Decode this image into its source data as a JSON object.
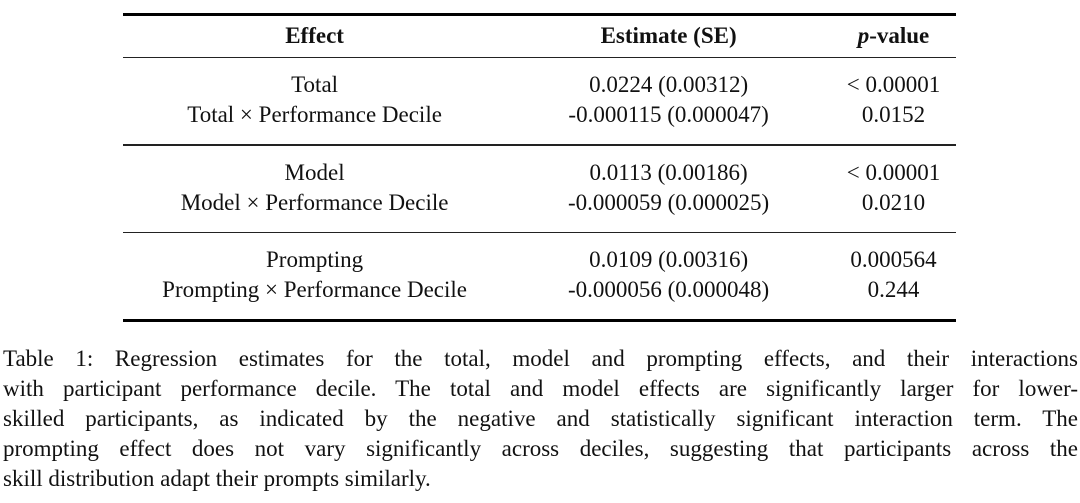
{
  "figure": {
    "table": {
      "header": {
        "effect": "Effect",
        "estimate": "Estimate (SE)",
        "p_italic": "p",
        "p_rest": "-value"
      },
      "groups": [
        {
          "rows": [
            {
              "effect": "Total",
              "estimate": "0.0224 (0.00312)",
              "p": "< 0.00001"
            },
            {
              "effect": "Total × Performance Decile",
              "estimate": "-0.000115 (0.000047)",
              "p": "0.0152"
            }
          ]
        },
        {
          "rows": [
            {
              "effect": "Model",
              "estimate": "0.0113 (0.00186)",
              "p": "< 0.00001"
            },
            {
              "effect": "Model × Performance Decile",
              "estimate": "-0.000059 (0.000025)",
              "p": "0.0210"
            }
          ]
        },
        {
          "rows": [
            {
              "effect": "Prompting",
              "estimate": "0.0109 (0.00316)",
              "p": "0.000564"
            },
            {
              "effect": "Prompting × Performance Decile",
              "estimate": "-0.000056 (0.000048)",
              "p": "0.244"
            }
          ]
        }
      ]
    },
    "caption": {
      "label": "Table 1:",
      "lines": [
        "Table 1: Regression estimates for the total, model and prompting effects, and their interactions",
        "with participant performance decile. The total and model effects are significantly larger for lower-",
        "skilled participants, as indicated by the negative and statistically significant interaction term. The",
        "prompting effect does not vary significantly across deciles, suggesting that participants across the",
        "skill distribution adapt their prompts similarly."
      ]
    },
    "colors": {
      "background": "#ffffff",
      "text": "#111111",
      "rule_thick": "#000000",
      "rule_thin": "#222222"
    }
  }
}
